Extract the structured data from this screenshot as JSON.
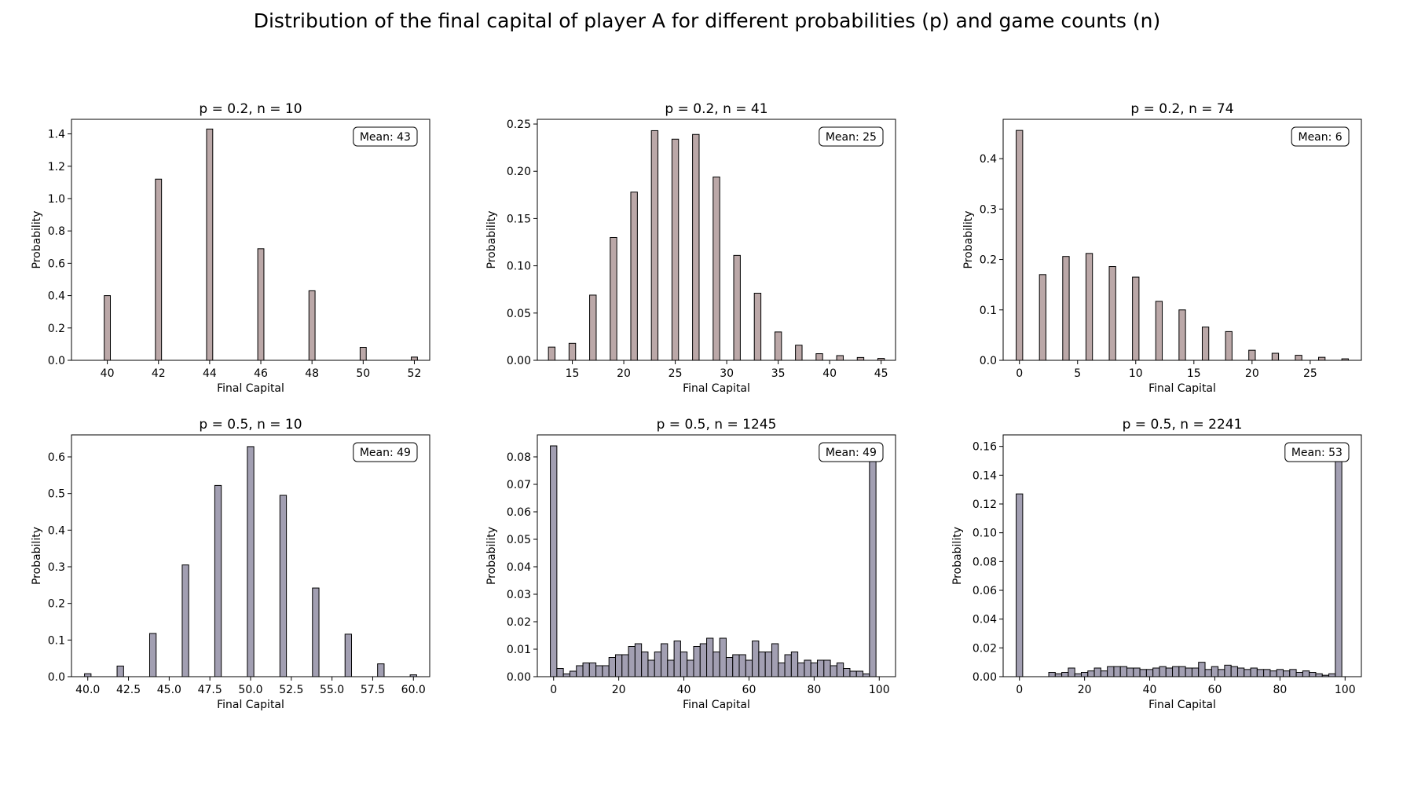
{
  "figure": {
    "suptitle": "Distribution of the final capital of player A for different probabilities (p) and game counts (n)"
  },
  "colors": {
    "bar_p02": "#bba8a8",
    "bar_p05": "#a29fb2",
    "edge": "#000000"
  },
  "chart_data": [
    {
      "type": "bar",
      "title": "p = 0.2, n = 10",
      "xlabel": "Final Capital",
      "ylabel": "Probability",
      "annotation": "Mean: 43",
      "xlim": [
        38.6,
        52.6
      ],
      "ylim": [
        0,
        1.49
      ],
      "bin_width": 0.24,
      "x_ticks": [
        40,
        42,
        44,
        46,
        48,
        50,
        52
      ],
      "x_tick_labels": [
        "40",
        "42",
        "44",
        "46",
        "48",
        "50",
        "52"
      ],
      "y_ticks": [
        0,
        0.2,
        0.4,
        0.6,
        0.8,
        1.0,
        1.2,
        1.4
      ],
      "y_tick_labels": [
        "0.0",
        "0.2",
        "0.4",
        "0.6",
        "0.8",
        "1.0",
        "1.2",
        "1.4"
      ],
      "x": [
        40,
        42,
        44,
        46,
        48,
        50,
        52
      ],
      "values": [
        0.4,
        1.12,
        1.43,
        0.69,
        0.43,
        0.08,
        0.02
      ],
      "legend": "top-right"
    },
    {
      "type": "bar",
      "title": "p = 0.2, n = 41",
      "xlabel": "Final Capital",
      "ylabel": "Probability",
      "annotation": "Mean: 25",
      "xlim": [
        11.6,
        46.4
      ],
      "ylim": [
        0,
        0.255
      ],
      "bin_width": 0.64,
      "x_ticks": [
        15,
        20,
        25,
        30,
        35,
        40,
        45
      ],
      "x_tick_labels": [
        "15",
        "20",
        "25",
        "30",
        "35",
        "40",
        "45"
      ],
      "y_ticks": [
        0,
        0.05,
        0.1,
        0.15,
        0.2,
        0.25
      ],
      "y_tick_labels": [
        "0.00",
        "0.05",
        "0.10",
        "0.15",
        "0.20",
        "0.25"
      ],
      "x": [
        13,
        15,
        17,
        19,
        21,
        23,
        25,
        27,
        29,
        31,
        33,
        35,
        37,
        39,
        41,
        43,
        45
      ],
      "values": [
        0.014,
        0.018,
        0.069,
        0.13,
        0.178,
        0.243,
        0.234,
        0.239,
        0.194,
        0.111,
        0.071,
        0.03,
        0.016,
        0.007,
        0.005,
        0.003,
        0.002
      ]
    },
    {
      "type": "bar",
      "title": "p = 0.2, n = 74",
      "xlabel": "Final Capital",
      "ylabel": "Probability",
      "annotation": "Mean: 6",
      "xlim": [
        -1.4,
        29.4
      ],
      "ylim": [
        0,
        0.478
      ],
      "bin_width": 0.56,
      "x_ticks": [
        0,
        5,
        10,
        15,
        20,
        25
      ],
      "x_tick_labels": [
        "0",
        "5",
        "10",
        "15",
        "20",
        "25"
      ],
      "y_ticks": [
        0,
        0.1,
        0.2,
        0.3,
        0.4
      ],
      "y_tick_labels": [
        "0.0",
        "0.1",
        "0.2",
        "0.3",
        "0.4"
      ],
      "x": [
        0,
        2,
        4,
        6,
        8,
        10,
        12,
        14,
        16,
        18,
        20,
        22,
        24,
        26,
        28
      ],
      "values": [
        0.456,
        0.17,
        0.206,
        0.212,
        0.186,
        0.165,
        0.117,
        0.1,
        0.066,
        0.057,
        0.02,
        0.014,
        0.01,
        0.006,
        0.003
      ]
    },
    {
      "type": "bar",
      "title": "p = 0.5, n = 10",
      "xlabel": "Final Capital",
      "ylabel": "Probability",
      "annotation": "Mean: 49",
      "xlim": [
        39.0,
        61.0
      ],
      "ylim": [
        0,
        0.66
      ],
      "bin_width": 0.4,
      "x_ticks": [
        40,
        42.5,
        45,
        47.5,
        50,
        52.5,
        55,
        57.5,
        60
      ],
      "x_tick_labels": [
        "40.0",
        "42.5",
        "45.0",
        "47.5",
        "50.0",
        "52.5",
        "55.0",
        "57.5",
        "60.0"
      ],
      "y_ticks": [
        0,
        0.1,
        0.2,
        0.3,
        0.4,
        0.5,
        0.6
      ],
      "y_tick_labels": [
        "0.0",
        "0.1",
        "0.2",
        "0.3",
        "0.4",
        "0.5",
        "0.6"
      ],
      "x": [
        40,
        42,
        44,
        46,
        48,
        50,
        52,
        54,
        56,
        58,
        60
      ],
      "values": [
        0.008,
        0.029,
        0.118,
        0.305,
        0.522,
        0.628,
        0.495,
        0.242,
        0.116,
        0.035,
        0.005
      ]
    },
    {
      "type": "bar",
      "title": "p = 0.5, n = 1245",
      "xlabel": "Final Capital",
      "ylabel": "Probability",
      "annotation": "Mean: 49",
      "xlim": [
        -5,
        105
      ],
      "ylim": [
        0,
        0.088
      ],
      "bin_width": 2,
      "x_ticks": [
        0,
        20,
        40,
        60,
        80,
        100
      ],
      "x_tick_labels": [
        "0",
        "20",
        "40",
        "60",
        "80",
        "100"
      ],
      "y_ticks": [
        0,
        0.01,
        0.02,
        0.03,
        0.04,
        0.05,
        0.06,
        0.07,
        0.08
      ],
      "y_tick_labels": [
        "0.00",
        "0.01",
        "0.02",
        "0.03",
        "0.04",
        "0.05",
        "0.06",
        "0.07",
        "0.08"
      ],
      "x": [
        0,
        2,
        4,
        6,
        8,
        10,
        12,
        14,
        16,
        18,
        20,
        22,
        24,
        26,
        28,
        30,
        32,
        34,
        36,
        38,
        40,
        42,
        44,
        46,
        48,
        50,
        52,
        54,
        56,
        58,
        60,
        62,
        64,
        66,
        68,
        70,
        72,
        74,
        76,
        78,
        80,
        82,
        84,
        86,
        88,
        90,
        92,
        94,
        96,
        98
      ],
      "values": [
        0.084,
        0.003,
        0.001,
        0.002,
        0.004,
        0.005,
        0.005,
        0.004,
        0.004,
        0.007,
        0.008,
        0.008,
        0.011,
        0.012,
        0.009,
        0.006,
        0.009,
        0.012,
        0.006,
        0.013,
        0.009,
        0.006,
        0.011,
        0.012,
        0.014,
        0.009,
        0.014,
        0.007,
        0.008,
        0.008,
        0.006,
        0.013,
        0.009,
        0.009,
        0.012,
        0.005,
        0.008,
        0.009,
        0.005,
        0.006,
        0.005,
        0.006,
        0.006,
        0.004,
        0.005,
        0.003,
        0.002,
        0.002,
        0.001,
        0.081
      ]
    },
    {
      "type": "bar",
      "title": "p = 0.5, n = 2241",
      "xlabel": "Final Capital",
      "ylabel": "Probability",
      "annotation": "Mean: 53",
      "xlim": [
        -5,
        105
      ],
      "ylim": [
        0,
        0.168
      ],
      "bin_width": 2,
      "x_ticks": [
        0,
        20,
        40,
        60,
        80,
        100
      ],
      "x_tick_labels": [
        "0",
        "20",
        "40",
        "60",
        "80",
        "100"
      ],
      "y_ticks": [
        0,
        0.02,
        0.04,
        0.06,
        0.08,
        0.1,
        0.12,
        0.14,
        0.16
      ],
      "y_tick_labels": [
        "0.00",
        "0.02",
        "0.04",
        "0.06",
        "0.08",
        "0.10",
        "0.12",
        "0.14",
        "0.16"
      ],
      "x": [
        0,
        2,
        4,
        6,
        8,
        10,
        12,
        14,
        16,
        18,
        20,
        22,
        24,
        26,
        28,
        30,
        32,
        34,
        36,
        38,
        40,
        42,
        44,
        46,
        48,
        50,
        52,
        54,
        56,
        58,
        60,
        62,
        64,
        66,
        68,
        70,
        72,
        74,
        76,
        78,
        80,
        82,
        84,
        86,
        88,
        90,
        92,
        94,
        96,
        98
      ],
      "values": [
        0.127,
        0,
        0,
        0,
        0,
        0.003,
        0.002,
        0.003,
        0.006,
        0.002,
        0.003,
        0.004,
        0.006,
        0.004,
        0.007,
        0.007,
        0.007,
        0.006,
        0.006,
        0.005,
        0.005,
        0.006,
        0.007,
        0.006,
        0.007,
        0.007,
        0.006,
        0.006,
        0.01,
        0.005,
        0.007,
        0.005,
        0.008,
        0.007,
        0.006,
        0.005,
        0.006,
        0.005,
        0.005,
        0.004,
        0.005,
        0.004,
        0.005,
        0.003,
        0.004,
        0.003,
        0.002,
        0.001,
        0.002,
        0.16
      ]
    }
  ]
}
